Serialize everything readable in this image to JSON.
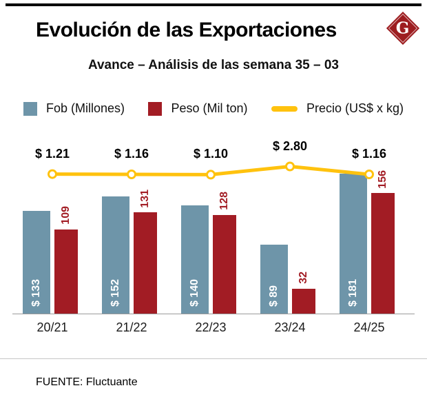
{
  "header": {
    "title": "Evolución de las Exportaciones",
    "subtitle": "Avance – Análisis de las semana 35 – 03",
    "logo_letter": "G",
    "logo_color": "#9d1d20"
  },
  "legend": [
    {
      "label": "Fob (Millones)",
      "color": "#6e95a9",
      "swatch": "square"
    },
    {
      "label": "Peso (Mil ton)",
      "color": "#a21c24",
      "swatch": "square"
    },
    {
      "label": "Precio (US$ x kg)",
      "color": "#ffc20e",
      "swatch": "line"
    }
  ],
  "chart_data": {
    "type": "bar",
    "subtype": "grouped-bars-with-line",
    "categories": [
      "20/21",
      "21/22",
      "22/23",
      "23/24",
      "24/25"
    ],
    "series": [
      {
        "name": "Fob (Millones)",
        "type": "bar",
        "color": "#6e95a9",
        "values": [
          133,
          152,
          140,
          89,
          181
        ],
        "labels": [
          "$ 133",
          "$ 152",
          "$ 140",
          "$ 89",
          "$ 181"
        ]
      },
      {
        "name": "Peso (Mil ton)",
        "type": "bar",
        "color": "#a21c24",
        "values": [
          109,
          131,
          128,
          32,
          156
        ],
        "labels": [
          "109",
          "131",
          "128",
          "32",
          "156"
        ]
      },
      {
        "name": "Precio (US$ x kg)",
        "type": "line",
        "color": "#ffc20e",
        "values": [
          1.21,
          1.16,
          1.1,
          2.8,
          1.16
        ],
        "labels": [
          "$ 1.21",
          "$ 1.16",
          "$ 1.10",
          "$ 2.80",
          "$ 1.16"
        ]
      }
    ],
    "ylim": [
      0,
      200
    ],
    "grid": false,
    "legend_position": "top"
  },
  "footer": {
    "source": "FUENTE: Fluctuante"
  }
}
